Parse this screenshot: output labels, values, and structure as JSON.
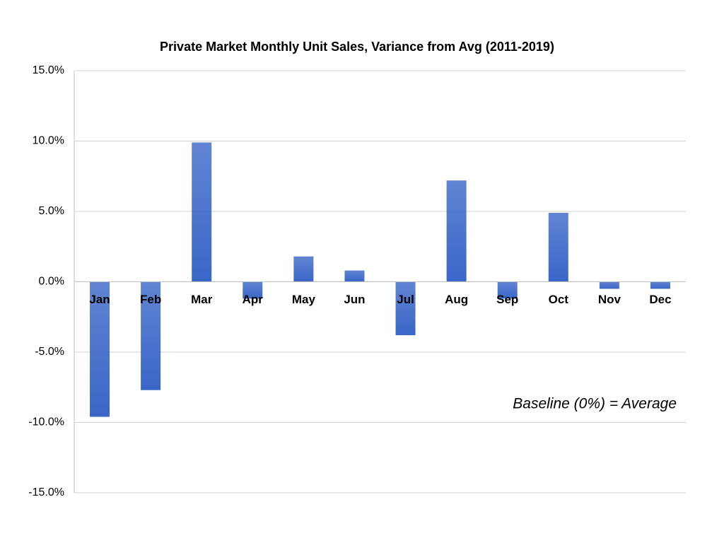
{
  "chart_data": {
    "type": "bar",
    "title": "Private Market Monthly Unit Sales, Variance from Avg (2011-2019)",
    "annotation": "Baseline (0%) = Average",
    "categories": [
      "Jan",
      "Feb",
      "Mar",
      "Apr",
      "May",
      "Jun",
      "Jul",
      "Aug",
      "Sep",
      "Oct",
      "Nov",
      "Dec"
    ],
    "values": [
      -9.6,
      -7.7,
      9.9,
      -1.2,
      1.8,
      0.8,
      -3.8,
      7.2,
      -1.2,
      4.9,
      -0.5,
      -0.5
    ],
    "color": "#3a66c8",
    "ylim": [
      -15,
      15
    ],
    "yticks": [
      {
        "value": -15,
        "label": "-15.0%"
      },
      {
        "value": -10,
        "label": "-10.0%"
      },
      {
        "value": -5,
        "label": "-5.0%"
      },
      {
        "value": 0,
        "label": "0.0%"
      },
      {
        "value": 5,
        "label": "5.0%"
      },
      {
        "value": 10,
        "label": "10.0%"
      },
      {
        "value": 15,
        "label": "15.0%"
      }
    ],
    "grid": true
  }
}
